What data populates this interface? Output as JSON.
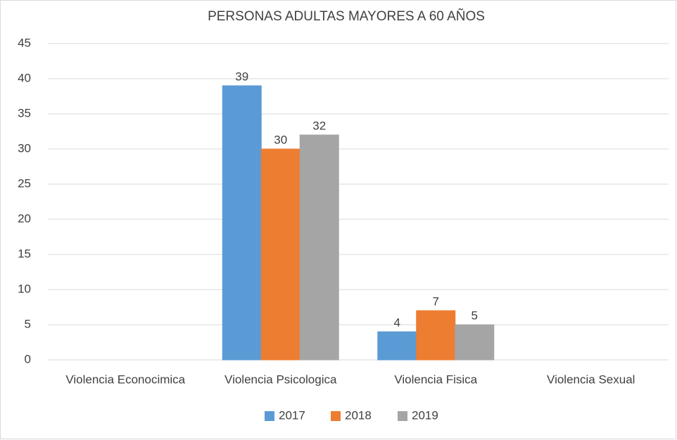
{
  "chart_data": {
    "type": "bar",
    "title": "PERSONAS ADULTAS MAYORES A 60 AÑOS",
    "categories": [
      "Violencia Econocimica",
      "Violencia Psicologica",
      "Violencia Fisica",
      "Violencia Sexual"
    ],
    "series": [
      {
        "name": "2017",
        "color": "#5b9bd5",
        "values": [
          0,
          39,
          4,
          0
        ],
        "value_labels": [
          null,
          "39",
          "4",
          null
        ]
      },
      {
        "name": "2018",
        "color": "#ed7d31",
        "values": [
          0,
          30,
          7,
          0
        ],
        "value_labels": [
          null,
          "30",
          "7",
          null
        ]
      },
      {
        "name": "2019",
        "color": "#a5a5a5",
        "values": [
          0,
          32,
          5,
          0
        ],
        "value_labels": [
          null,
          "32",
          "5",
          null
        ]
      }
    ],
    "ylim": [
      0,
      45
    ],
    "yticks": [
      0,
      5,
      10,
      15,
      20,
      25,
      30,
      35,
      40,
      45
    ],
    "grid": true,
    "legend": "bottom"
  }
}
